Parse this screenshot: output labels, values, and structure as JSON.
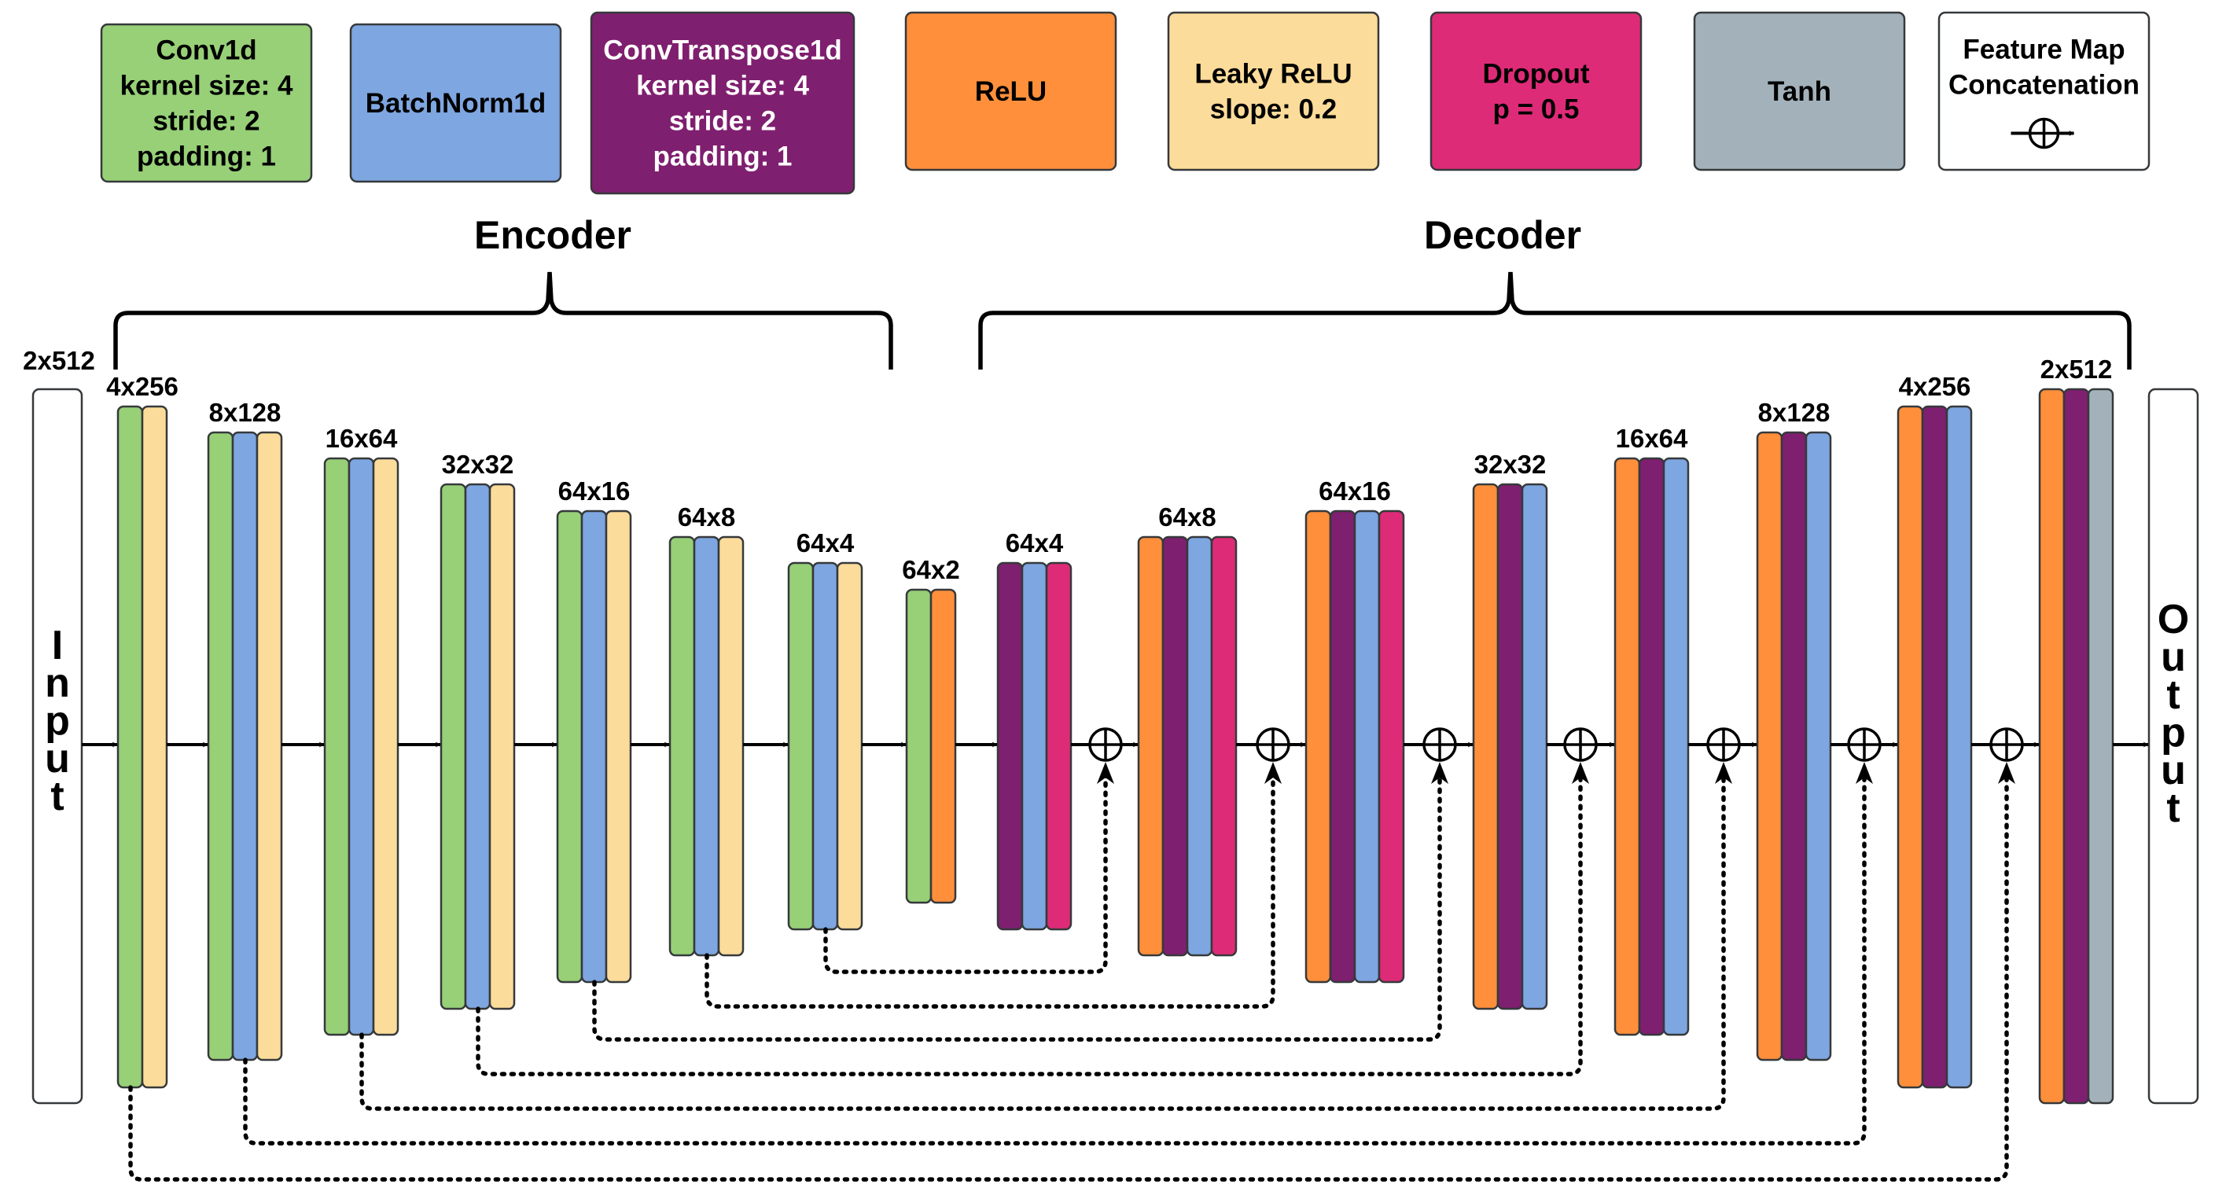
{
  "colors": {
    "conv": "#97d077",
    "bn": "#7ea6e0",
    "convt": "#7f1f6f",
    "relu": "#ff8f3b",
    "lrelu": "#fcdc9a",
    "dropout": "#de2b77",
    "tanh": "#a3b2ba",
    "io": "#ffffff"
  },
  "legend": [
    {
      "key": "conv",
      "lines": [
        "Conv1d",
        "kernel size: 4",
        "stride: 2",
        "padding: 1"
      ],
      "text_color": "#000000"
    },
    {
      "key": "bn",
      "lines": [
        "BatchNorm1d"
      ],
      "text_color": "#000000"
    },
    {
      "key": "convt",
      "lines": [
        "ConvTranspose1d",
        "kernel size: 4",
        "stride: 2",
        "padding: 1"
      ],
      "text_color": "#ffffff"
    },
    {
      "key": "relu",
      "lines": [
        "ReLU"
      ],
      "text_color": "#000000"
    },
    {
      "key": "lrelu",
      "lines": [
        "Leaky ReLU",
        "slope: 0.2"
      ],
      "text_color": "#000000"
    },
    {
      "key": "dropout",
      "lines": [
        "Dropout",
        "p = 0.5"
      ],
      "text_color": "#000000"
    },
    {
      "key": "tanh",
      "lines": [
        "Tanh"
      ],
      "text_color": "#000000"
    },
    {
      "key": "io",
      "lines": [
        "Feature Map",
        "Concatenation"
      ],
      "text_color": "#000000",
      "icon": "concat-icon"
    }
  ],
  "sections": {
    "encoder": "Encoder",
    "decoder": "Decoder"
  },
  "input": {
    "letters": [
      "I",
      "n",
      "p",
      "u",
      "t"
    ],
    "dim": "2x512"
  },
  "output": {
    "letters": [
      "O",
      "u",
      "t",
      "p",
      "u",
      "t"
    ]
  },
  "blocks": [
    {
      "dim": "4x256",
      "layers": [
        "conv",
        "lrelu"
      ]
    },
    {
      "dim": "8x128",
      "layers": [
        "conv",
        "bn",
        "lrelu"
      ]
    },
    {
      "dim": "16x64",
      "layers": [
        "conv",
        "bn",
        "lrelu"
      ]
    },
    {
      "dim": "32x32",
      "layers": [
        "conv",
        "bn",
        "lrelu"
      ]
    },
    {
      "dim": "64x16",
      "layers": [
        "conv",
        "bn",
        "lrelu"
      ]
    },
    {
      "dim": "64x8",
      "layers": [
        "conv",
        "bn",
        "lrelu"
      ]
    },
    {
      "dim": "64x4",
      "layers": [
        "conv",
        "bn",
        "lrelu"
      ]
    },
    {
      "dim": "64x2",
      "layers": [
        "conv",
        "relu"
      ]
    },
    {
      "dim": "64x4",
      "layers": [
        "convt",
        "bn",
        "dropout"
      ]
    },
    {
      "dim": "64x8",
      "layers": [
        "relu",
        "convt",
        "bn",
        "dropout"
      ]
    },
    {
      "dim": "64x16",
      "layers": [
        "relu",
        "convt",
        "bn",
        "dropout"
      ]
    },
    {
      "dim": "32x32",
      "layers": [
        "relu",
        "convt",
        "bn"
      ]
    },
    {
      "dim": "16x64",
      "layers": [
        "relu",
        "convt",
        "bn"
      ]
    },
    {
      "dim": "8x128",
      "layers": [
        "relu",
        "convt",
        "bn"
      ]
    },
    {
      "dim": "4x256",
      "layers": [
        "relu",
        "convt",
        "bn"
      ]
    },
    {
      "dim": "2x512",
      "layers": [
        "relu",
        "convt",
        "tanh"
      ]
    }
  ],
  "skip_connections": [
    {
      "from": "64x4",
      "to": "concat-1"
    },
    {
      "from": "64x8",
      "to": "concat-2"
    },
    {
      "from": "64x16",
      "to": "concat-3"
    },
    {
      "from": "32x32",
      "to": "concat-4"
    },
    {
      "from": "16x64",
      "to": "concat-5"
    },
    {
      "from": "8x128",
      "to": "concat-6"
    },
    {
      "from": "4x256",
      "to": "concat-7"
    }
  ]
}
